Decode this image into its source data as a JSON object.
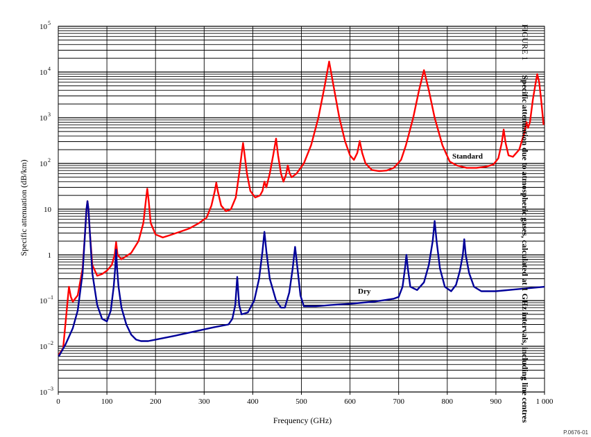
{
  "figure": {
    "number": "FIGURE 1",
    "caption": "Specific attenuation due to atmospheric gases, calculated at 1 GHz intervals, including line centres",
    "code": "P.0676-01"
  },
  "chart_data": {
    "type": "line",
    "xlabel": "Frequency (GHz)",
    "ylabel": "Specific attenuation (dB/km)",
    "xlim": [
      0,
      1000
    ],
    "ylim": [
      0.001,
      100000
    ],
    "yscale": "log",
    "grid": true,
    "x_ticks": [
      "0",
      "100",
      "200",
      "300",
      "400",
      "500",
      "600",
      "700",
      "800",
      "900",
      "1 000"
    ],
    "y_ticks": [
      {
        "base": "10",
        "exp": "–3"
      },
      {
        "base": "10",
        "exp": "–2"
      },
      {
        "base": "10",
        "exp": "–1"
      },
      {
        "base": "1",
        "exp": ""
      },
      {
        "base": "10",
        "exp": ""
      },
      {
        "base": "10",
        "exp": "2"
      },
      {
        "base": "10",
        "exp": "3"
      },
      {
        "base": "10",
        "exp": "4"
      },
      {
        "base": "10",
        "exp": "5"
      }
    ],
    "series": [
      {
        "name": "Standard",
        "color": "#ff0000",
        "points": [
          [
            1,
            0.0065
          ],
          [
            10,
            0.009
          ],
          [
            20,
            0.12
          ],
          [
            22,
            0.2
          ],
          [
            26,
            0.12
          ],
          [
            30,
            0.095
          ],
          [
            40,
            0.13
          ],
          [
            50,
            0.5
          ],
          [
            55,
            3
          ],
          [
            58,
            10
          ],
          [
            60,
            15
          ],
          [
            62,
            10
          ],
          [
            65,
            3
          ],
          [
            70,
            0.6
          ],
          [
            80,
            0.35
          ],
          [
            90,
            0.38
          ],
          [
            100,
            0.45
          ],
          [
            110,
            0.6
          ],
          [
            116,
            1.0
          ],
          [
            119,
            1.9
          ],
          [
            122,
            1.0
          ],
          [
            130,
            0.8
          ],
          [
            150,
            1.1
          ],
          [
            165,
            2.0
          ],
          [
            175,
            5
          ],
          [
            180,
            15
          ],
          [
            183,
            28
          ],
          [
            186,
            15
          ],
          [
            190,
            5
          ],
          [
            200,
            2.8
          ],
          [
            215,
            2.4
          ],
          [
            230,
            2.7
          ],
          [
            250,
            3.2
          ],
          [
            270,
            3.8
          ],
          [
            290,
            5
          ],
          [
            305,
            6.5
          ],
          [
            315,
            12
          ],
          [
            322,
            25
          ],
          [
            325,
            38
          ],
          [
            328,
            25
          ],
          [
            335,
            12
          ],
          [
            345,
            9
          ],
          [
            355,
            10
          ],
          [
            365,
            18
          ],
          [
            372,
            60
          ],
          [
            377,
            160
          ],
          [
            380,
            280
          ],
          [
            383,
            160
          ],
          [
            388,
            60
          ],
          [
            395,
            25
          ],
          [
            405,
            18
          ],
          [
            415,
            20
          ],
          [
            420,
            25
          ],
          [
            424,
            40
          ],
          [
            428,
            30
          ],
          [
            435,
            60
          ],
          [
            442,
            150
          ],
          [
            448,
            350
          ],
          [
            452,
            150
          ],
          [
            458,
            60
          ],
          [
            463,
            40
          ],
          [
            468,
            55
          ],
          [
            472,
            90
          ],
          [
            476,
            60
          ],
          [
            480,
            50
          ],
          [
            490,
            60
          ],
          [
            505,
            100
          ],
          [
            520,
            250
          ],
          [
            535,
            1000
          ],
          [
            548,
            5000
          ],
          [
            557,
            17000
          ],
          [
            566,
            5000
          ],
          [
            578,
            1000
          ],
          [
            590,
            300
          ],
          [
            600,
            150
          ],
          [
            608,
            120
          ],
          [
            615,
            170
          ],
          [
            620,
            310
          ],
          [
            625,
            170
          ],
          [
            632,
            100
          ],
          [
            645,
            72
          ],
          [
            660,
            68
          ],
          [
            675,
            70
          ],
          [
            690,
            80
          ],
          [
            705,
            120
          ],
          [
            715,
            250
          ],
          [
            730,
            1000
          ],
          [
            742,
            4000
          ],
          [
            752,
            11000
          ],
          [
            762,
            4000
          ],
          [
            774,
            1000
          ],
          [
            790,
            250
          ],
          [
            805,
            110
          ],
          [
            820,
            90
          ],
          [
            840,
            80
          ],
          [
            860,
            80
          ],
          [
            880,
            85
          ],
          [
            895,
            95
          ],
          [
            905,
            130
          ],
          [
            912,
            280
          ],
          [
            916,
            550
          ],
          [
            920,
            280
          ],
          [
            926,
            150
          ],
          [
            935,
            140
          ],
          [
            948,
            200
          ],
          [
            958,
            450
          ],
          [
            963,
            800
          ],
          [
            966,
            600
          ],
          [
            970,
            800
          ],
          [
            976,
            2500
          ],
          [
            982,
            6000
          ],
          [
            985,
            9000
          ],
          [
            989,
            6000
          ],
          [
            993,
            2500
          ],
          [
            998,
            700
          ]
        ]
      },
      {
        "name": "Dry",
        "color": "#000099",
        "points": [
          [
            1,
            0.006
          ],
          [
            15,
            0.011
          ],
          [
            30,
            0.025
          ],
          [
            40,
            0.06
          ],
          [
            50,
            0.4
          ],
          [
            55,
            3
          ],
          [
            58,
            10
          ],
          [
            60,
            15
          ],
          [
            62,
            10
          ],
          [
            65,
            3
          ],
          [
            70,
            0.4
          ],
          [
            80,
            0.08
          ],
          [
            90,
            0.04
          ],
          [
            100,
            0.035
          ],
          [
            108,
            0.06
          ],
          [
            114,
            0.2
          ],
          [
            117,
            0.5
          ],
          [
            119,
            1.3
          ],
          [
            121,
            0.5
          ],
          [
            124,
            0.2
          ],
          [
            130,
            0.07
          ],
          [
            140,
            0.03
          ],
          [
            150,
            0.018
          ],
          [
            160,
            0.014
          ],
          [
            170,
            0.013
          ],
          [
            185,
            0.013
          ],
          [
            200,
            0.014
          ],
          [
            240,
            0.017
          ],
          [
            280,
            0.021
          ],
          [
            320,
            0.026
          ],
          [
            350,
            0.03
          ],
          [
            358,
            0.04
          ],
          [
            364,
            0.08
          ],
          [
            368,
            0.33
          ],
          [
            372,
            0.08
          ],
          [
            377,
            0.05
          ],
          [
            390,
            0.055
          ],
          [
            403,
            0.1
          ],
          [
            413,
            0.3
          ],
          [
            420,
            1.2
          ],
          [
            424,
            3.2
          ],
          [
            428,
            1.2
          ],
          [
            435,
            0.3
          ],
          [
            448,
            0.1
          ],
          [
            458,
            0.07
          ],
          [
            466,
            0.07
          ],
          [
            475,
            0.15
          ],
          [
            482,
            0.5
          ],
          [
            487,
            1.5
          ],
          [
            492,
            0.5
          ],
          [
            498,
            0.13
          ],
          [
            505,
            0.075
          ],
          [
            530,
            0.075
          ],
          [
            560,
            0.08
          ],
          [
            600,
            0.085
          ],
          [
            650,
            0.095
          ],
          [
            690,
            0.11
          ],
          [
            700,
            0.12
          ],
          [
            708,
            0.2
          ],
          [
            713,
            0.5
          ],
          [
            716,
            1.0
          ],
          [
            719,
            0.5
          ],
          [
            724,
            0.2
          ],
          [
            738,
            0.17
          ],
          [
            752,
            0.25
          ],
          [
            762,
            0.6
          ],
          [
            770,
            2.0
          ],
          [
            774,
            5.5
          ],
          [
            778,
            2.0
          ],
          [
            785,
            0.5
          ],
          [
            795,
            0.2
          ],
          [
            808,
            0.16
          ],
          [
            818,
            0.22
          ],
          [
            826,
            0.45
          ],
          [
            832,
            1.0
          ],
          [
            835,
            2.2
          ],
          [
            838,
            1.0
          ],
          [
            845,
            0.4
          ],
          [
            855,
            0.2
          ],
          [
            870,
            0.16
          ],
          [
            900,
            0.16
          ],
          [
            950,
            0.18
          ],
          [
            1000,
            0.2
          ]
        ]
      }
    ]
  }
}
